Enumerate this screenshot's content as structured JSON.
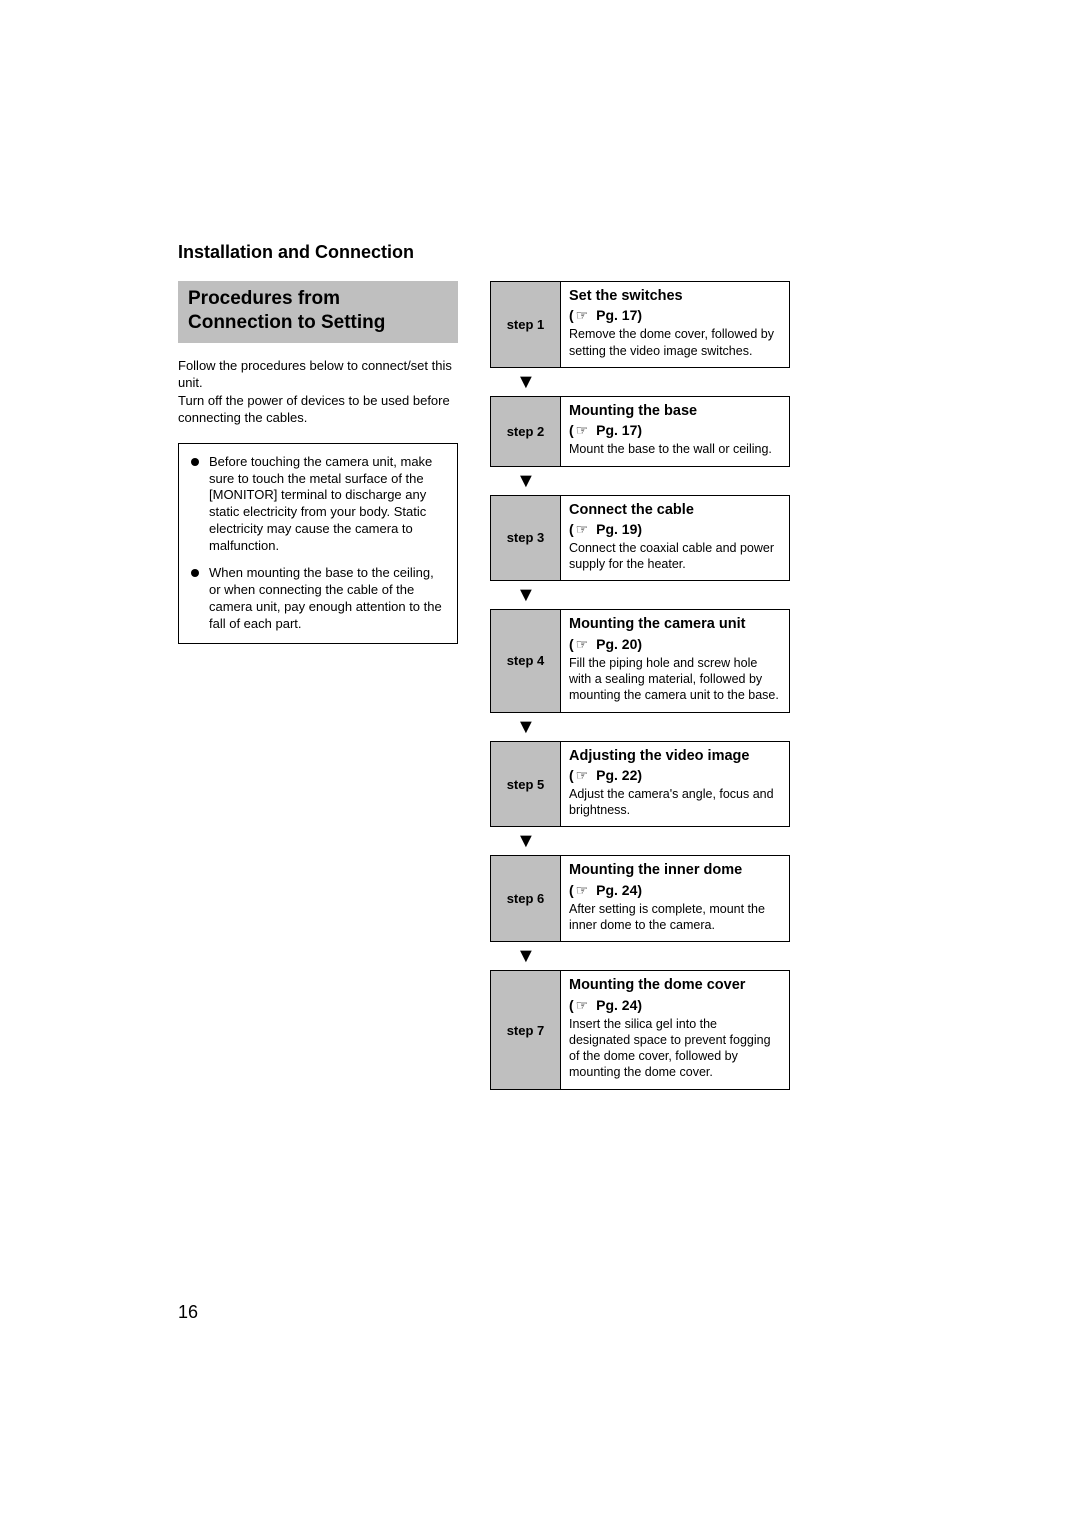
{
  "section_header": "Installation and Connection",
  "title_line1": "Procedures from",
  "title_line2": "Connection to Setting",
  "intro_p1": "Follow the procedures below to connect/set this unit.",
  "intro_p2": "Turn off the power of devices to be used before connecting the cables.",
  "notes": [
    "Before touching the camera unit, make sure to touch the metal surface of the [MONITOR] terminal to discharge any static electricity from your body. Static electricity may cause the camera to malfunction.",
    "When mounting the base to the ceiling, or when connecting the cable of the camera unit, pay enough attention to the fall of each part."
  ],
  "ref_symbol": "☞",
  "steps": [
    {
      "label": "step 1",
      "title": "Set the switches",
      "pg": "Pg. 17",
      "desc": "Remove the dome cover, followed by setting the video image switches."
    },
    {
      "label": "step 2",
      "title": "Mounting the base",
      "pg": "Pg. 17",
      "desc": "Mount the base to the wall or ceiling."
    },
    {
      "label": "step 3",
      "title": "Connect the cable",
      "pg": "Pg. 19",
      "desc": "Connect the coaxial cable and power supply for the heater."
    },
    {
      "label": "step 4",
      "title": "Mounting the camera unit",
      "pg": "Pg. 20",
      "desc": "Fill the piping hole and screw hole with a sealing material, followed by mounting the camera unit to the base."
    },
    {
      "label": "step 5",
      "title": "Adjusting the video image",
      "pg": "Pg. 22",
      "desc": "Adjust the camera's angle, focus and brightness."
    },
    {
      "label": "step 6",
      "title": "Mounting the inner dome",
      "pg": "Pg. 24",
      "desc": "After setting is complete, mount the inner dome to the camera."
    },
    {
      "label": "step 7",
      "title": "Mounting the dome cover",
      "pg": "Pg. 24",
      "desc": "Insert the silica gel into the designated space to prevent fogging of the dome cover, followed by mounting the dome cover."
    }
  ],
  "page_number": "16",
  "colors": {
    "banner_bg": "#bfbfbf",
    "step_label_bg": "#bfbfbf",
    "text": "#000000",
    "background": "#ffffff"
  },
  "typography": {
    "section_header_pt": 18,
    "title_pt": 19,
    "body_pt": 13,
    "step_title_pt": 14.5,
    "step_desc_pt": 12.5,
    "page_number_pt": 18
  }
}
